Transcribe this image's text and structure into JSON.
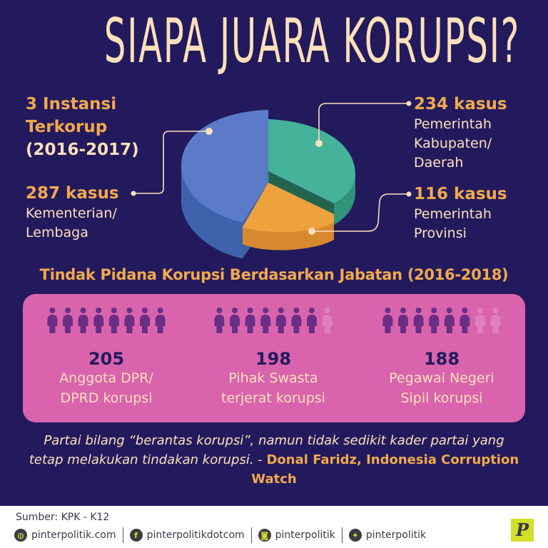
{
  "title": "SIAPA JUARA KORUPSI?",
  "pie_section": {
    "heading_line1": "3 Instansi",
    "heading_line2": "Terkorup",
    "heading_years": "(2016-2017)",
    "stats": [
      {
        "value": "287 kasus",
        "label_line1": "Kementerian/",
        "label_line2": "Lembaga",
        "label_line3": "",
        "color": "#5b7bc9"
      },
      {
        "value": "234 kasus",
        "label_line1": "Pemerintah",
        "label_line2": "Kabupaten/",
        "label_line3": "Daerah",
        "color": "#45b39a"
      },
      {
        "value": "116 kasus",
        "label_line1": "Pemerintah",
        "label_line2": "Provinsi",
        "label_line3": "",
        "color": "#eea23e"
      }
    ]
  },
  "position_section": {
    "title": "Tindak Pidana Korupsi Berdasarkan Jabatan (2016-2018)",
    "groups": [
      {
        "count": "205",
        "desc_line1": "Anggota DPR/",
        "desc_line2": "DPRD korupsi",
        "filled_icons": 8,
        "total_icons": 8
      },
      {
        "count": "198",
        "desc_line1": "Pihak Swasta",
        "desc_line2": "terjerat korupsi",
        "filled_icons": 7,
        "total_icons": 8
      },
      {
        "count": "188",
        "desc_line1": "Pegawai Negeri",
        "desc_line2": "Sipil korupsi",
        "filled_icons": 6,
        "total_icons": 8
      }
    ]
  },
  "quote": {
    "text": "Partai bilang “berantas korupsi”, namun tidak sedikit kader partai yang tetap melakukan tindakan korupsi. - ",
    "author": "Donal Faridz, Indonesia Corruption Watch"
  },
  "footer": {
    "source": "Sumber: KPK - K12",
    "socials": [
      {
        "icon": "globe-icon",
        "glyph": "◍",
        "label": "pinterpolitik.com"
      },
      {
        "icon": "facebook-icon",
        "glyph": "f",
        "label": "pinterpolitikdotcom"
      },
      {
        "icon": "instagram-icon",
        "glyph": "◙",
        "label": "pinterpolitik"
      },
      {
        "icon": "twitter-icon",
        "glyph": "✦",
        "label": "pinterpolitik"
      }
    ],
    "logo": "P"
  },
  "colors": {
    "background": "#231a5e",
    "accent_orange": "#f1a94b",
    "cream": "#fde0b9",
    "panel_pink": "#d964ad",
    "icon_purple": "#6a2e84",
    "icon_faded": "#e07fbe",
    "logo_yellow": "#d4df2a"
  },
  "chart_data": [
    {
      "type": "pie",
      "title": "3 Instansi Terkorup (2016-2017)",
      "categories": [
        "Kementerian/Lembaga",
        "Pemerintah Kabupaten/Daerah",
        "Pemerintah Provinsi"
      ],
      "values": [
        287,
        234,
        116
      ],
      "unit": "kasus",
      "colors": [
        "#5b7bc9",
        "#45b39a",
        "#eea23e"
      ]
    },
    {
      "type": "bar",
      "title": "Tindak Pidana Korupsi Berdasarkan Jabatan (2016-2018)",
      "categories": [
        "Anggota DPR/DPRD",
        "Pihak Swasta",
        "Pegawai Negeri Sipil"
      ],
      "values": [
        205,
        198,
        188
      ],
      "xlabel": "",
      "ylabel": ""
    }
  ]
}
